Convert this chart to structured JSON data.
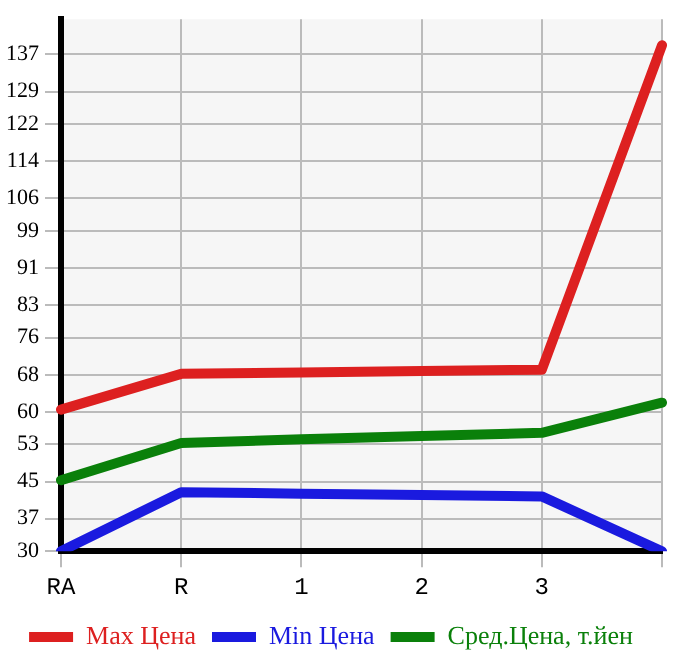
{
  "chart_data": {
    "type": "line",
    "categories": [
      "RA",
      "R",
      "1",
      "2",
      "3",
      null
    ],
    "series": [
      {
        "name": "Max Цена",
        "color": "#dd2020",
        "values": [
          60.5,
          68.2,
          68.5,
          68.8,
          69.1,
          139
        ]
      },
      {
        "name": "Min Цена",
        "color": "#1a1adf",
        "values": [
          30,
          42.7,
          42.4,
          42.1,
          41.8,
          30
        ]
      },
      {
        "name": "Сред.Цена, т.йен",
        "color": "#0a800a",
        "values": [
          45.3,
          53.3,
          54.1,
          54.8,
          55.5,
          62
        ]
      }
    ],
    "ylim": [
      30,
      144.6
    ],
    "yticks": [
      30,
      37,
      45,
      53,
      60,
      68,
      76,
      83,
      91,
      99,
      106,
      114,
      122,
      129,
      137
    ],
    "grid": true,
    "legend": "bottom",
    "marker": "none",
    "line_style": "solid"
  }
}
